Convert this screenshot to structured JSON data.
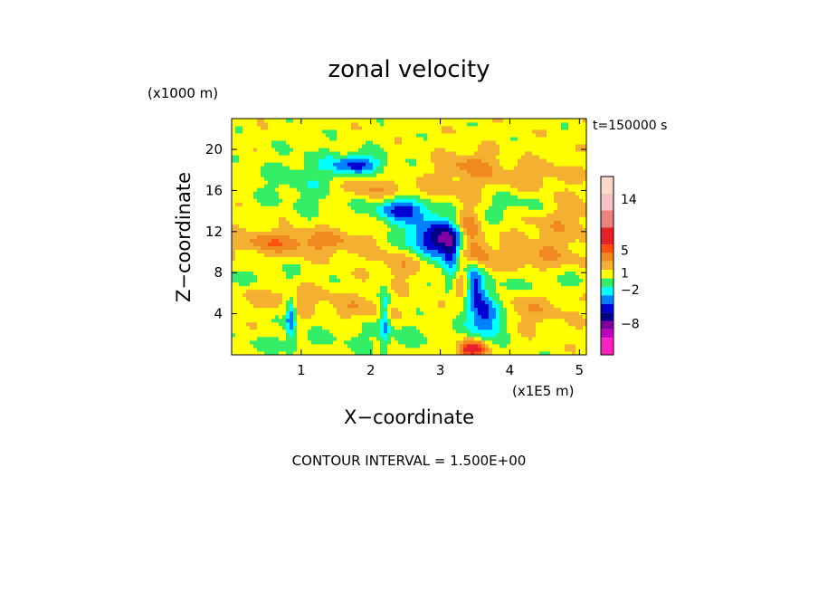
{
  "chart_data": {
    "type": "heatmap",
    "title": "zonal velocity",
    "xlabel": "X−coordinate",
    "ylabel": "Z−coordinate",
    "x_units": "(x1E5 m)",
    "y_units": "(x1000 m)",
    "time_label": "t=150000 s",
    "xlim": [
      0,
      5.1
    ],
    "ylim": [
      0,
      23
    ],
    "x_ticks": [
      "1",
      "2",
      "3",
      "4",
      "5"
    ],
    "y_ticks": [
      "4",
      "8",
      "12",
      "16",
      "20"
    ],
    "x_tick_values": [
      1,
      2,
      3,
      4,
      5
    ],
    "y_tick_values": [
      4,
      8,
      12,
      16,
      20
    ],
    "contour_interval_text": "CONTOUR INTERVAL = 1.500E+00",
    "colorbar": {
      "tick_labels": [
        "14",
        "5",
        "1",
        "−2",
        "−8"
      ],
      "tick_values": [
        14,
        5,
        1,
        -2,
        -8
      ],
      "levels_top_to_bottom": [
        {
          "lo": 15.0,
          "hi": 18.0,
          "color": "#ffd8c8"
        },
        {
          "lo": 12.0,
          "hi": 15.0,
          "color": "#f5c2c2"
        },
        {
          "lo": 9.0,
          "hi": 12.0,
          "color": "#ee8080"
        },
        {
          "lo": 6.0,
          "hi": 9.0,
          "color": "#e8202a"
        },
        {
          "lo": 4.5,
          "hi": 6.0,
          "color": "#ff5010"
        },
        {
          "lo": 3.0,
          "hi": 4.5,
          "color": "#f08a20"
        },
        {
          "lo": 1.5,
          "hi": 3.0,
          "color": "#f4b030"
        },
        {
          "lo": 0.0,
          "hi": 1.5,
          "color": "#ffff00"
        },
        {
          "lo": -1.5,
          "hi": 0.0,
          "color": "#33ee66"
        },
        {
          "lo": -3.0,
          "hi": -1.5,
          "color": "#00ffff"
        },
        {
          "lo": -4.5,
          "hi": -3.0,
          "color": "#0080ff"
        },
        {
          "lo": -6.0,
          "hi": -4.5,
          "color": "#0000d0"
        },
        {
          "lo": -7.5,
          "hi": -6.0,
          "color": "#000088"
        },
        {
          "lo": -9.0,
          "hi": -7.5,
          "color": "#8000a0"
        },
        {
          "lo": -10.5,
          "hi": -9.0,
          "color": "#c000c0"
        },
        {
          "lo": -13.5,
          "hi": -10.5,
          "color": "#ff20c0"
        }
      ]
    },
    "field_features": [
      {
        "x": 3.0,
        "z": 11.3,
        "sx": 0.35,
        "sz": 1.2,
        "value": -8
      },
      {
        "x": 2.5,
        "z": 14.2,
        "sx": 0.3,
        "sz": 0.9,
        "value": -6
      },
      {
        "x": 1.8,
        "z": 18.6,
        "sx": 0.25,
        "sz": 0.6,
        "value": -5
      },
      {
        "x": 3.65,
        "z": 4.0,
        "sx": 0.18,
        "sz": 1.5,
        "value": -7
      },
      {
        "x": 3.5,
        "z": 7.2,
        "sx": 0.1,
        "sz": 1.5,
        "value": -5
      },
      {
        "x": 3.15,
        "z": 9.0,
        "sx": 0.08,
        "sz": 2.0,
        "value": -4
      },
      {
        "x": 0.85,
        "z": 3.5,
        "sx": 0.05,
        "sz": 1.5,
        "value": -5
      },
      {
        "x": 2.2,
        "z": 3.5,
        "sx": 0.05,
        "sz": 2.0,
        "value": -4
      },
      {
        "x": 1.3,
        "z": 17.0,
        "sx": 0.6,
        "sz": 2.0,
        "value": -2
      },
      {
        "x": 2.2,
        "z": 1.8,
        "sx": 0.8,
        "sz": 1.2,
        "value": -1
      },
      {
        "x": 4.5,
        "z": 7.2,
        "sx": 0.6,
        "sz": 1.0,
        "value": -1.5
      },
      {
        "x": 0.5,
        "z": 7.5,
        "sx": 0.5,
        "sz": 0.8,
        "value": -1
      },
      {
        "x": 3.4,
        "z": 12.0,
        "sx": 0.12,
        "sz": 1.5,
        "value": 5
      },
      {
        "x": 3.55,
        "z": 10.0,
        "sx": 0.12,
        "sz": 1.2,
        "value": 4
      },
      {
        "x": 3.45,
        "z": 0.6,
        "sx": 0.15,
        "sz": 0.6,
        "value": 7
      },
      {
        "x": 3.3,
        "z": 6.5,
        "sx": 0.1,
        "sz": 1.0,
        "value": 3
      },
      {
        "x": 1.9,
        "z": 16.2,
        "sx": 0.35,
        "sz": 0.8,
        "value": 3
      },
      {
        "x": 3.4,
        "z": 18.5,
        "sx": 0.3,
        "sz": 1.0,
        "value": 2.5
      },
      {
        "x": 0.6,
        "z": 11.0,
        "sx": 0.45,
        "sz": 0.8,
        "value": 3
      },
      {
        "x": 1.5,
        "z": 11.0,
        "sx": 0.4,
        "sz": 1.0,
        "value": 2
      },
      {
        "x": 2.4,
        "z": 9.0,
        "sx": 0.25,
        "sz": 1.2,
        "value": 2
      },
      {
        "x": 4.4,
        "z": 9.5,
        "sx": 0.55,
        "sz": 1.5,
        "value": 2
      },
      {
        "x": 4.2,
        "z": 4.5,
        "sx": 0.5,
        "sz": 1.2,
        "value": 1.8
      },
      {
        "x": 4.7,
        "z": 13.5,
        "sx": 0.5,
        "sz": 1.5,
        "value": 1.8
      },
      {
        "x": 0.8,
        "z": 5.8,
        "sx": 0.5,
        "sz": 0.8,
        "value": 1.6
      },
      {
        "x": 1.8,
        "z": 4.5,
        "sx": 0.4,
        "sz": 0.8,
        "value": 1.6
      },
      {
        "x": 2.9,
        "z": 15.8,
        "sx": 0.45,
        "sz": 1.0,
        "value": 1.6
      },
      {
        "x": 4.3,
        "z": 17.5,
        "sx": 0.5,
        "sz": 1.0,
        "value": 1.6
      },
      {
        "x": 0.6,
        "z": 1.0,
        "sx": 0.4,
        "sz": 0.6,
        "value": -1.2
      },
      {
        "x": 4.1,
        "z": 14.5,
        "sx": 0.4,
        "sz": 1.0,
        "value": -2
      }
    ],
    "background_value": 0.8
  }
}
